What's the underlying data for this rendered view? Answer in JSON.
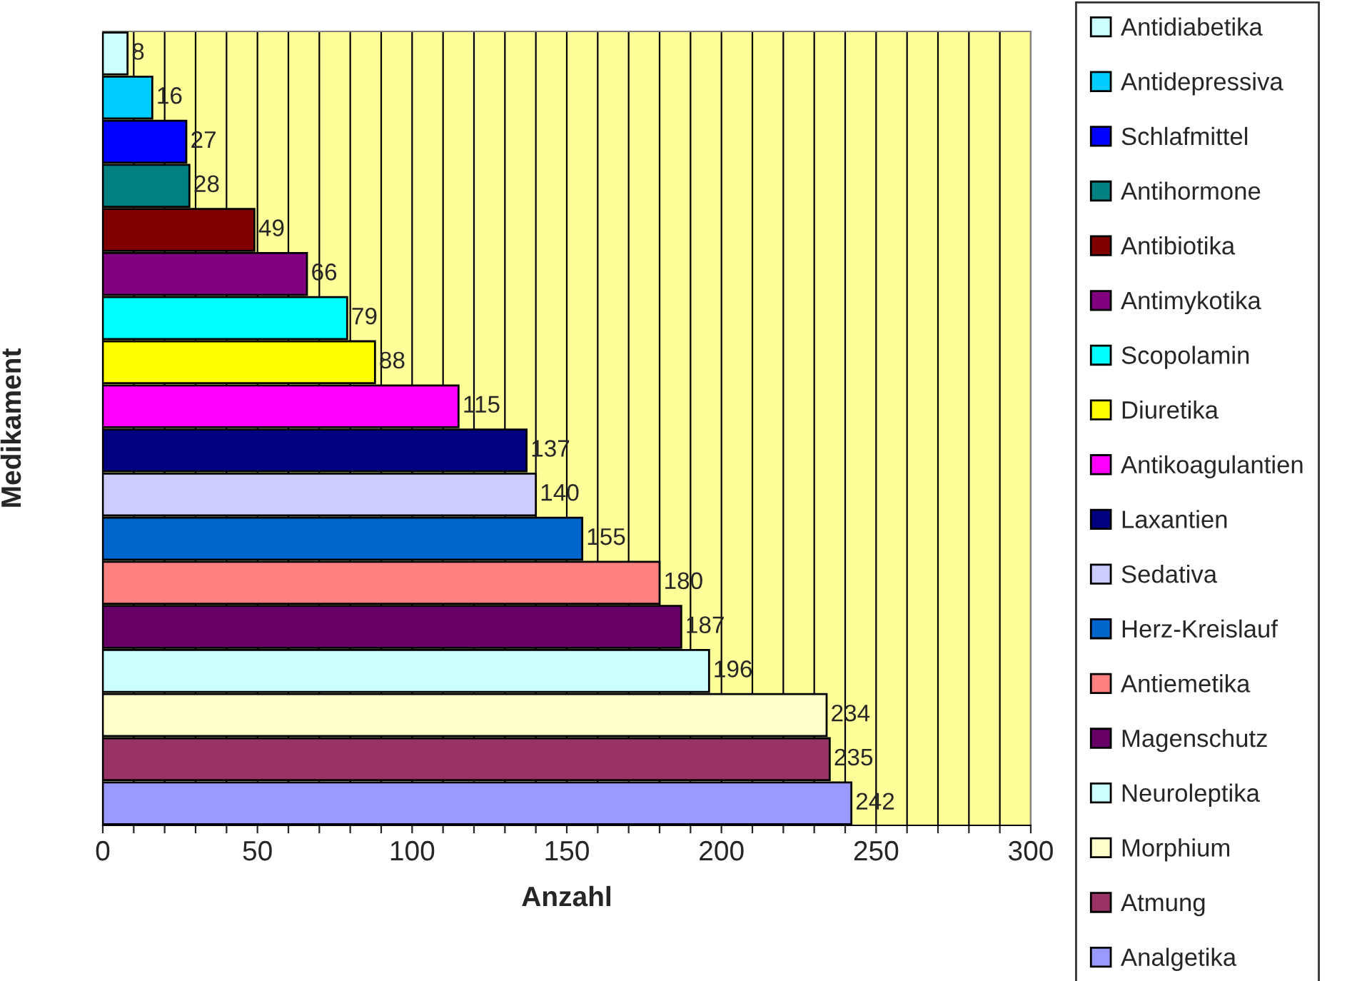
{
  "chart_data": {
    "type": "bar",
    "orientation": "horizontal",
    "xlabel": "Anzahl",
    "ylabel": "Medikament",
    "categories": [
      null,
      null,
      null,
      null,
      null,
      null,
      null,
      null,
      null,
      null,
      null,
      null,
      null,
      null,
      null,
      null,
      null,
      null
    ],
    "series": [
      {
        "name": "Antidiabetika",
        "color": "#ccffff",
        "values": [
          8,
          null,
          null,
          null,
          null,
          null,
          null,
          null,
          null,
          null,
          null,
          null,
          null,
          null,
          null,
          null,
          null,
          null
        ]
      },
      {
        "name": "Antidepressiva",
        "color": "#00ccff",
        "values": [
          null,
          16,
          null,
          null,
          null,
          null,
          null,
          null,
          null,
          null,
          null,
          null,
          null,
          null,
          null,
          null,
          null,
          null
        ]
      },
      {
        "name": "Schlafmittel",
        "color": "#0000ff",
        "values": [
          null,
          null,
          27,
          null,
          null,
          null,
          null,
          null,
          null,
          null,
          null,
          null,
          null,
          null,
          null,
          null,
          null,
          null
        ]
      },
      {
        "name": "Antihormone",
        "color": "#008080",
        "values": [
          null,
          null,
          null,
          28,
          null,
          null,
          null,
          null,
          null,
          null,
          null,
          null,
          null,
          null,
          null,
          null,
          null,
          null
        ]
      },
      {
        "name": "Antibiotika",
        "color": "#800000",
        "values": [
          null,
          null,
          null,
          null,
          49,
          null,
          null,
          null,
          null,
          null,
          null,
          null,
          null,
          null,
          null,
          null,
          null,
          null
        ]
      },
      {
        "name": "Antimykotika",
        "color": "#800080",
        "values": [
          null,
          null,
          null,
          null,
          null,
          66,
          null,
          null,
          null,
          null,
          null,
          null,
          null,
          null,
          null,
          null,
          null,
          null
        ]
      },
      {
        "name": "Scopolamin",
        "color": "#00ffff",
        "values": [
          null,
          null,
          null,
          null,
          null,
          null,
          79,
          null,
          null,
          null,
          null,
          null,
          null,
          null,
          null,
          null,
          null,
          null
        ]
      },
      {
        "name": "Diuretika",
        "color": "#ffff00",
        "values": [
          null,
          null,
          null,
          null,
          null,
          null,
          null,
          88,
          null,
          null,
          null,
          null,
          null,
          null,
          null,
          null,
          null,
          null
        ]
      },
      {
        "name": "Antikoagulantien",
        "color": "#ff00ff",
        "values": [
          null,
          null,
          null,
          null,
          null,
          null,
          null,
          null,
          115,
          null,
          null,
          null,
          null,
          null,
          null,
          null,
          null,
          null
        ]
      },
      {
        "name": "Laxantien",
        "color": "#000080",
        "values": [
          null,
          null,
          null,
          null,
          null,
          null,
          null,
          null,
          null,
          137,
          null,
          null,
          null,
          null,
          null,
          null,
          null,
          null
        ]
      },
      {
        "name": "Sedativa",
        "color": "#ccccff",
        "values": [
          null,
          null,
          null,
          null,
          null,
          null,
          null,
          null,
          null,
          null,
          140,
          null,
          null,
          null,
          null,
          null,
          null,
          null
        ]
      },
      {
        "name": "Herz-Kreislauf",
        "color": "#0066cc",
        "values": [
          null,
          null,
          null,
          null,
          null,
          null,
          null,
          null,
          null,
          null,
          null,
          155,
          null,
          null,
          null,
          null,
          null,
          null
        ]
      },
      {
        "name": "Antiemetika",
        "color": "#ff8080",
        "values": [
          null,
          null,
          null,
          null,
          null,
          null,
          null,
          null,
          null,
          null,
          null,
          null,
          180,
          null,
          null,
          null,
          null,
          null
        ]
      },
      {
        "name": "Magenschutz",
        "color": "#660066",
        "values": [
          null,
          null,
          null,
          null,
          null,
          null,
          null,
          null,
          null,
          null,
          null,
          null,
          null,
          187,
          null,
          null,
          null,
          null
        ]
      },
      {
        "name": "Neuroleptika",
        "color": "#ccffff",
        "values": [
          null,
          null,
          null,
          null,
          null,
          null,
          null,
          null,
          null,
          null,
          null,
          null,
          null,
          null,
          196,
          null,
          null,
          null
        ]
      },
      {
        "name": "Morphium",
        "color": "#ffffcc",
        "values": [
          null,
          null,
          null,
          null,
          null,
          null,
          null,
          null,
          null,
          null,
          null,
          null,
          null,
          null,
          null,
          234,
          null,
          null
        ]
      },
      {
        "name": "Atmung",
        "color": "#993366",
        "values": [
          null,
          null,
          null,
          null,
          null,
          null,
          null,
          null,
          null,
          null,
          null,
          null,
          null,
          null,
          null,
          null,
          235,
          null
        ]
      },
      {
        "name": "Analgetika",
        "color": "#9999ff",
        "values": [
          null,
          null,
          null,
          null,
          null,
          null,
          null,
          null,
          null,
          null,
          null,
          null,
          null,
          null,
          null,
          null,
          null,
          242
        ]
      }
    ],
    "xlim": [
      0,
      300
    ],
    "xticks": [
      0,
      {
        "value": 10,
        "label": null
      },
      {
        "value": 20,
        "label": null
      },
      {
        "value": 30,
        "label": null
      },
      {
        "value": 40,
        "label": null
      },
      50,
      {
        "value": 60,
        "label": null
      },
      {
        "value": 70,
        "label": null
      },
      {
        "value": 80,
        "label": null
      },
      {
        "value": 90,
        "label": null
      },
      100,
      {
        "value": 110,
        "label": null
      },
      {
        "value": 120,
        "label": null
      },
      {
        "value": 130,
        "label": null
      },
      {
        "value": 140,
        "label": null
      },
      150,
      {
        "value": 160,
        "label": null
      },
      {
        "value": 170,
        "label": null
      },
      {
        "value": 180,
        "label": null
      },
      {
        "value": 190,
        "label": null
      },
      200,
      {
        "value": 210,
        "label": null
      },
      {
        "value": 220,
        "label": null
      },
      {
        "value": 230,
        "label": null
      },
      {
        "value": 240,
        "label": null
      },
      250,
      {
        "value": 260,
        "label": null
      },
      {
        "value": 270,
        "label": null
      },
      {
        "value": 280,
        "label": null
      },
      {
        "value": 290,
        "label": null
      },
      300
    ],
    "grid": "x",
    "legend": "right",
    "data_labels": true
  }
}
